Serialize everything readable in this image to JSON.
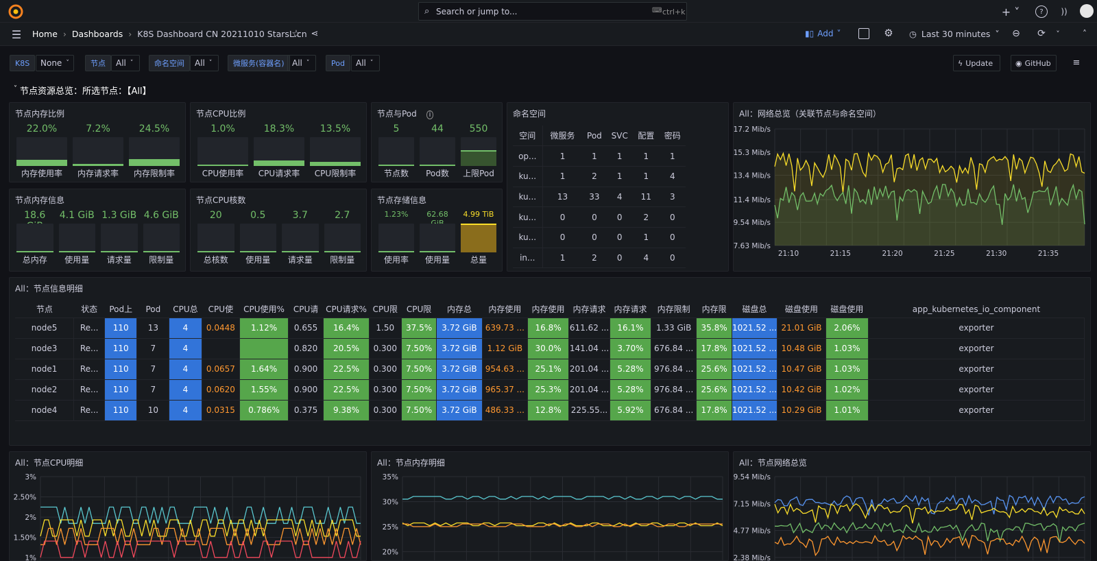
{
  "search": {
    "placeholder": "Search or jump to...",
    "shortcut": "ctrl+k"
  },
  "breadcrumb": {
    "home": "Home",
    "dashboards": "Dashboards",
    "current": "K8S Dashboard CN 20211010 StarsL.cn"
  },
  "toolbar": {
    "add_label": "Add",
    "time_range": "Last 30 minutes"
  },
  "variables": [
    {
      "label": "K8S",
      "value": "None"
    },
    {
      "label": "节点",
      "value": "All"
    },
    {
      "label": "命名空间",
      "value": "All"
    },
    {
      "label": "微服务(容器名)",
      "value": "All"
    },
    {
      "label": "Pod",
      "value": "All"
    }
  ],
  "links": {
    "update": "Update",
    "github": "GitHub"
  },
  "row_title": "节点资源总览：所选节点：【All】",
  "panels": {
    "mem_ratio": {
      "title": "节点内存比例",
      "gauges": [
        {
          "value": "22.0%",
          "label": "内存使用率",
          "fill": 0.22
        },
        {
          "value": "7.2%",
          "label": "内存请求率",
          "fill": 0.072
        },
        {
          "value": "24.5%",
          "label": "内存限制率",
          "fill": 0.245
        }
      ]
    },
    "cpu_ratio": {
      "title": "节点CPU比例",
      "gauges": [
        {
          "value": "1.0%",
          "label": "CPU使用率",
          "fill": 0.01
        },
        {
          "value": "18.3%",
          "label": "CPU请求率",
          "fill": 0.183
        },
        {
          "value": "13.5%",
          "label": "CPU限制率",
          "fill": 0.135
        }
      ]
    },
    "pods": {
      "title": "节点与Pod",
      "gauges": [
        {
          "value": "5",
          "label": "节点数",
          "fill": 0.02
        },
        {
          "value": "44",
          "label": "Pod数",
          "fill": 0.03
        },
        {
          "value": "550",
          "label": "上限Pod",
          "fill": 0.55
        }
      ]
    },
    "mem_info": {
      "title": "节点内存信息",
      "gauges": [
        {
          "value": "18.6 GiB",
          "label": "总内存",
          "fill": 0.03
        },
        {
          "value": "4.1 GiB",
          "label": "使用量",
          "fill": 0.03
        },
        {
          "value": "1.3 GiB",
          "label": "请求量",
          "fill": 0.03
        },
        {
          "value": "4.6 GiB",
          "label": "限制量",
          "fill": 0.03
        }
      ]
    },
    "cpu_cores": {
      "title": "节点CPU核数",
      "gauges": [
        {
          "value": "20",
          "label": "总核数",
          "fill": 0.03
        },
        {
          "value": "0.5",
          "label": "使用量",
          "fill": 0.03
        },
        {
          "value": "3.7",
          "label": "请求量",
          "fill": 0.03
        },
        {
          "value": "2.7",
          "label": "限制量",
          "fill": 0.03
        }
      ]
    },
    "storage": {
      "title": "节点存储信息",
      "gauges": [
        {
          "value": "1.23%",
          "label": "使用率",
          "fill": 0.03
        },
        {
          "value": "62.68 GiB",
          "label": "使用量",
          "fill": 0.03
        },
        {
          "value": "4.99 TiB",
          "label": "总量",
          "fill": 1
        }
      ]
    },
    "namespace": {
      "title": "命名空间",
      "headers": [
        "空间",
        "微服务",
        "Pod",
        "SVC",
        "配置",
        "密码"
      ],
      "rows": [
        [
          "op...",
          "1",
          "1",
          "1",
          "1",
          "1"
        ],
        [
          "ku...",
          "1",
          "2",
          "1",
          "1",
          "4"
        ],
        [
          "ku...",
          "13",
          "33",
          "4",
          "11",
          "3"
        ],
        [
          "ku...",
          "0",
          "0",
          "0",
          "2",
          "0"
        ],
        [
          "ku...",
          "0",
          "0",
          "0",
          "1",
          "0"
        ],
        [
          "in...",
          "1",
          "2",
          "0",
          "4",
          "0"
        ]
      ]
    },
    "network_overview": {
      "title": "All：网络总览（关联节点与命名空间）"
    },
    "node_detail": {
      "title": "All：节点信息明细",
      "headers": [
        "节点",
        "状态",
        "Pod上",
        "Pod",
        "CPU总",
        "CPU使",
        "CPU使用%",
        "CPU请",
        "CPU请求%",
        "CPU限",
        "CPU限",
        "内存总",
        "内存使用",
        "内存使用",
        "内存请求",
        "内存请求",
        "内存限制",
        "内存限",
        "磁盘总",
        "磁盘使用",
        "磁盘使用",
        "app_kubernetes_io_component"
      ],
      "rows": [
        [
          "node5",
          "Re...",
          "110",
          "13",
          "4",
          "0.0448",
          "1.12%",
          "0.655",
          "16.4%",
          "1.50",
          "37.5%",
          "3.72 GiB",
          "639.73 ...",
          "16.8%",
          "611.62 ...",
          "16.1%",
          "1.33 GiB",
          "35.8%",
          "1021.52 ...",
          "21.01 GiB",
          "2.06%",
          "exporter"
        ],
        [
          "node3",
          "Re...",
          "110",
          "7",
          "4",
          "",
          "",
          "0.820",
          "20.5%",
          "0.300",
          "7.50%",
          "3.72 GiB",
          "1.12 GiB",
          "30.0%",
          "141.04 ...",
          "3.70%",
          "676.84 ...",
          "17.8%",
          "1021.52 ...",
          "10.48 GiB",
          "1.03%",
          "exporter"
        ],
        [
          "node1",
          "Re...",
          "110",
          "7",
          "4",
          "0.0657",
          "1.64%",
          "0.900",
          "22.5%",
          "0.300",
          "7.50%",
          "3.72 GiB",
          "954.63 ...",
          "25.1%",
          "201.04 ...",
          "5.28%",
          "976.84 ...",
          "25.6%",
          "1021.52 ...",
          "10.47 GiB",
          "1.03%",
          "exporter"
        ],
        [
          "node2",
          "Re...",
          "110",
          "7",
          "4",
          "0.0620",
          "1.55%",
          "0.900",
          "22.5%",
          "0.300",
          "7.50%",
          "3.72 GiB",
          "965.37 ...",
          "25.3%",
          "201.04 ...",
          "5.28%",
          "976.84 ...",
          "25.6%",
          "1021.52 ...",
          "10.42 GiB",
          "1.02%",
          "exporter"
        ],
        [
          "node4",
          "Re...",
          "110",
          "10",
          "4",
          "0.0315",
          "0.786%",
          "0.375",
          "9.38%",
          "0.300",
          "7.50%",
          "3.72 GiB",
          "486.33 ...",
          "12.8%",
          "225.55...",
          "5.92%",
          "676.84 ...",
          "17.8%",
          "1021.52 ...",
          "10.29 GiB",
          "1.01%",
          "exporter"
        ]
      ]
    },
    "cpu_detail": {
      "title": "All：节点CPU明细"
    },
    "mem_detail": {
      "title": "All：节点内存明细"
    },
    "net_detail": {
      "title": "All：节点网络总览"
    }
  },
  "chart_data": [
    {
      "type": "area",
      "title": "All：网络总览（关联节点与命名空间）",
      "x": [
        "21:10",
        "21:15",
        "21:20",
        "21:25",
        "21:30",
        "21:35"
      ],
      "yticks": [
        "17.2 Mib/s",
        "15.3 Mib/s",
        "13.4 Mib/s",
        "11.4 Mib/s",
        "9.54 Mib/s",
        "7.63 Mib/s"
      ],
      "ylim": [
        7.63,
        17.2
      ],
      "series": [
        {
          "color": "#fade2a",
          "mean": 14.4
        },
        {
          "color": "#73bf69",
          "mean": 11.8
        }
      ]
    },
    {
      "type": "line",
      "title": "All：节点CPU明细",
      "yticks": [
        "3%",
        "2.50%",
        "2%",
        "1.50%",
        "1%"
      ],
      "ylim": [
        0.9,
        3
      ],
      "series": [
        {
          "color": "#5ac8d0"
        },
        {
          "color": "#fade2a"
        },
        {
          "color": "#ff9830"
        },
        {
          "color": "#f2495c"
        }
      ]
    },
    {
      "type": "line",
      "title": "All：节点内存明细",
      "yticks": [
        "35%",
        "30%",
        "25%",
        "20%"
      ],
      "ylim": [
        18,
        35
      ],
      "series": [
        {
          "color": "#5ac8d0",
          "mean": 30.5
        },
        {
          "color": "#fade2a",
          "mean": 25.2
        },
        {
          "color": "#ff9830",
          "mean": 25
        }
      ]
    },
    {
      "type": "line",
      "title": "All：节点网络总览",
      "yticks": [
        "9.54 Mib/s",
        "7.15 Mib/s",
        "4.77 Mib/s",
        "2.38 Mib/s"
      ],
      "ylim": [
        2,
        9.54
      ],
      "series": [
        {
          "color": "#5794f2"
        },
        {
          "color": "#fade2a"
        },
        {
          "color": "#73bf69"
        },
        {
          "color": "#ff9830"
        }
      ]
    }
  ]
}
